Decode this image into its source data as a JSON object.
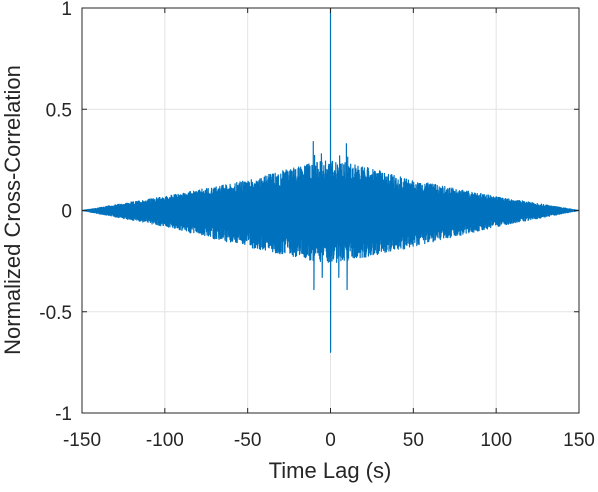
{
  "chart_data": {
    "type": "line",
    "xlabel": "Time Lag (s)",
    "ylabel": "Normalized Cross-Correlation",
    "xlim": [
      -150,
      150
    ],
    "ylim": [
      -1,
      1
    ],
    "xticks": [
      -150,
      -100,
      -50,
      0,
      50,
      100,
      150
    ],
    "xtick_labels": [
      "-150",
      "-100",
      "-50",
      "0",
      "50",
      "100",
      "150"
    ],
    "yticks": [
      -1,
      -0.5,
      0,
      0.5,
      1
    ],
    "ytick_labels": [
      "-1",
      "-0.5",
      "0",
      "0.5",
      "1"
    ],
    "grid": true,
    "series": [
      {
        "color": "#0072BD",
        "description_points": {
          "envelope_x": [
            -150,
            -100,
            -50,
            -10,
            0,
            10,
            50,
            100,
            150
          ],
          "envelope_upper": [
            0.0,
            0.07,
            0.15,
            0.24,
            0.25,
            0.24,
            0.15,
            0.07,
            0.0
          ],
          "envelope_lower": [
            0.0,
            -0.08,
            -0.18,
            -0.25,
            -0.26,
            -0.25,
            -0.18,
            -0.08,
            0.0
          ],
          "peak_x": 0,
          "peak_max": 1.0,
          "peak_min": -0.7,
          "secondary_peaks_x": [
            -10,
            10
          ],
          "secondary_peaks_max": [
            0.34,
            0.33
          ],
          "secondary_peaks_min": [
            -0.39,
            -0.39
          ]
        }
      }
    ]
  }
}
